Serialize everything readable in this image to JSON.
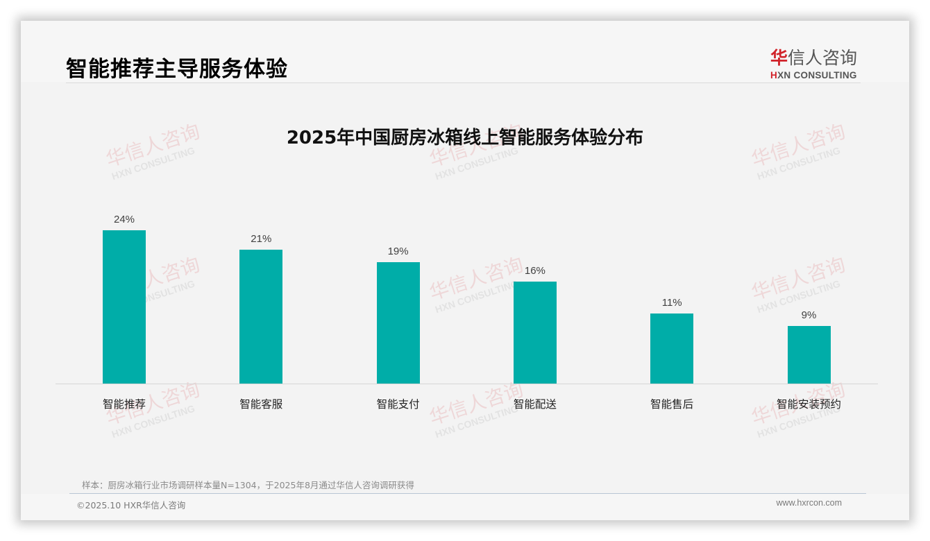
{
  "header": {
    "title": "智能推荐主导服务体验",
    "logo": {
      "cn_accent": "华",
      "cn_rest": "信人咨询",
      "en_accent": "H",
      "en_rest": "XN CONSULTING"
    }
  },
  "watermark": {
    "cn_accent": "华",
    "cn_rest": "信人咨询",
    "en": "HXN CONSULTING"
  },
  "colors": {
    "bar": "#00ADA8",
    "brand_red": "#D1232A",
    "background": "#F3F3F3"
  },
  "chart_data": {
    "type": "bar",
    "title": "2025年中国厨房冰箱线上智能服务体验分布",
    "categories": [
      "智能推荐",
      "智能客服",
      "智能支付",
      "智能配送",
      "智能售后",
      "智能安装预约"
    ],
    "values": [
      24,
      21,
      19,
      16,
      11,
      9
    ],
    "value_labels": [
      "24%",
      "21%",
      "19%",
      "16%",
      "11%",
      "9%"
    ],
    "unit": "%",
    "xlabel": "",
    "ylabel": "",
    "ylim": [
      0,
      25
    ],
    "grid": false,
    "legend": null
  },
  "footer": {
    "note": "样本：厨房冰箱行业市场调研样本量N=1304，于2025年8月通过华信人咨询调研获得",
    "copyright": "©2025.10 HXR华信人咨询",
    "website": "www.hxrcon.com"
  }
}
